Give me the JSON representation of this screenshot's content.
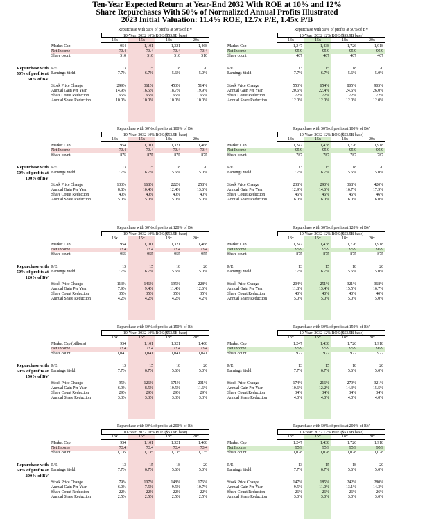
{
  "title": {
    "line1": "Ten-Year Expected Return at Year-End 2032 With ROE at 10% and 12%",
    "line2": "Share Repurchases With 50% of Normalized Annual Profits Illustrated",
    "line3": "2023 Initial Valuation: 11.4% ROE, 12.7x P/E, 1.45x P/B"
  },
  "colors": {
    "left_highlight": "#f6d9d9",
    "right_highlight": "#d6eccb"
  },
  "columns": [
    "13x",
    "15x",
    "18x",
    "20x"
  ],
  "left_roe_header": "10-Year: 2032 10% ROE ($53.9B base)",
  "right_roe_header": "10-Year: 2032 12% ROE ($53.9B base)",
  "sections": [
    {
      "side_label": [
        "Repurchase with",
        "50% of profits at",
        "50% of BV"
      ],
      "panels": [
        {
          "header": "Repurchase with 50% of profits at 50% of BV",
          "roe_header": "10-Year: 2032 10% ROE ($53.9B base)",
          "market_cap_label": "Market Cap",
          "market_cap": [
            "954",
            "1,101",
            "1,321",
            "1,468"
          ],
          "net_income": [
            "73.4",
            "73.4",
            "73.4",
            "73.4"
          ],
          "share_count": [
            "510",
            "510",
            "510",
            "510"
          ],
          "pe": [
            "13",
            "15",
            "18",
            "20"
          ],
          "ey": [
            "7.7%",
            "6.7%",
            "5.6%",
            "5.0%"
          ],
          "spc": [
            "299%",
            "361%",
            "453%",
            "514%"
          ],
          "agy": [
            "14.9%",
            "16.5%",
            "18.7%",
            "19.9%"
          ],
          "scr": [
            "65%",
            "65%",
            "65%",
            "65%"
          ],
          "asr": [
            "10.0%",
            "10.0%",
            "10.0%",
            "10.0%"
          ]
        },
        {
          "header": "Repurchase with 50% of profits at 50% of BV",
          "roe_header": "10-Year: 2032 12% ROE ($53.9B base)",
          "market_cap_label": "Market Cap",
          "market_cap": [
            "1,247",
            "1,438",
            "1,726",
            "1,918"
          ],
          "net_income": [
            "95.9",
            "95.9",
            "95.9",
            "95.9"
          ],
          "share_count": [
            "407",
            "407",
            "407",
            "407"
          ],
          "pe": [
            "13",
            "15",
            "18",
            "20"
          ],
          "ey": [
            "7.7%",
            "6.7%",
            "5.6%",
            "5.0%"
          ],
          "spc": [
            "553%",
            "654%",
            "805%",
            "905%"
          ],
          "agy": [
            "20.6%",
            "22.4%",
            "24.6%",
            "26.0%"
          ],
          "scr": [
            "72%",
            "72%",
            "72%",
            "72%"
          ],
          "asr": [
            "12.0%",
            "12.0%",
            "12.0%",
            "12.0%"
          ]
        }
      ]
    },
    {
      "side_label": [
        "Repurchase with",
        "50% of profits at",
        "100% of BV"
      ],
      "panels": [
        {
          "header": "Repurchase with 50% of profits at 100% of BV",
          "roe_header": "10-Year: 2032 10% ROE ($53.9B base)",
          "market_cap_label": "Market Cap",
          "market_cap": [
            "954",
            "1,101",
            "1,321",
            "1,468"
          ],
          "net_income": [
            "73.4",
            "73.4",
            "73.4",
            "73.4"
          ],
          "share_count": [
            "875",
            "875",
            "875",
            "875"
          ],
          "pe": [
            "13",
            "15",
            "18",
            "20"
          ],
          "ey": [
            "7.7%",
            "6.7%",
            "5.6%",
            "5.0%"
          ],
          "spc": [
            "133%",
            "168%",
            "222%",
            "258%"
          ],
          "agy": [
            "8.8%",
            "10.4%",
            "12.4%",
            "13.6%"
          ],
          "scr": [
            "40%",
            "40%",
            "40%",
            "40%"
          ],
          "asr": [
            "5.0%",
            "5.0%",
            "5.0%",
            "5.0%"
          ]
        },
        {
          "header": "Repurchase with 50% of profits at 100% of BV",
          "roe_header": "10-Year: 2032 12% ROE ($53.9B base)",
          "market_cap_label": "Market Cap",
          "market_cap": [
            "1,247",
            "1,438",
            "1,726",
            "1,918"
          ],
          "net_income": [
            "95.9",
            "95.9",
            "95.9",
            "95.9"
          ],
          "share_count": [
            "787",
            "787",
            "787",
            "787"
          ],
          "pe": [
            "13",
            "15",
            "18",
            "20"
          ],
          "ey": [
            "7.7%",
            "6.7%",
            "5.6%",
            "5.0%"
          ],
          "spc": [
            "238%",
            "290%",
            "368%",
            "420%"
          ],
          "agy": [
            "12.9%",
            "14.6%",
            "16.7%",
            "17.9%"
          ],
          "scr": [
            "46%",
            "46%",
            "46%",
            "46%"
          ],
          "asr": [
            "6.0%",
            "6.0%",
            "6.0%",
            "6.0%"
          ]
        }
      ]
    },
    {
      "side_label": [
        "Repurchase with",
        "50% of profits at",
        "120% of BV"
      ],
      "panels": [
        {
          "header": "Repurchase with 50% of profits at 120% of BV",
          "roe_header": "10-Year: 2032 10% ROE ($53.9B base)",
          "market_cap_label": "Market Cap",
          "market_cap": [
            "954",
            "1,101",
            "1,321",
            "1,468"
          ],
          "net_income": [
            "73.4",
            "73.4",
            "73.4",
            "73.4"
          ],
          "share_count": [
            "955",
            "955",
            "955",
            "955"
          ],
          "pe": [
            "13",
            "15",
            "18",
            "20"
          ],
          "ey": [
            "7.7%",
            "6.7%",
            "5.6%",
            "5.0%"
          ],
          "spc": [
            "113%",
            "146%",
            "195%",
            "228%"
          ],
          "agy": [
            "7.9%",
            "9.4%",
            "11.4%",
            "12.6%"
          ],
          "scr": [
            "35%",
            "35%",
            "35%",
            "35%"
          ],
          "asr": [
            "4.2%",
            "4.2%",
            "4.2%",
            "4.2%"
          ]
        },
        {
          "header": "Repurchase with 50% of profits at 120% of BV",
          "roe_header": "10-Year: 2032 12% ROE ($53.9B base)",
          "market_cap_label": "Market Cap",
          "market_cap": [
            "1,247",
            "1,438",
            "1,726",
            "1,918"
          ],
          "net_income": [
            "95.9",
            "95.9",
            "95.9",
            "95.9"
          ],
          "share_count": [
            "875",
            "875",
            "875",
            "875"
          ],
          "pe": [
            "13",
            "15",
            "18",
            "20"
          ],
          "ey": [
            "7.7%",
            "6.7%",
            "5.6%",
            "5.0%"
          ],
          "spc": [
            "204%",
            "251%",
            "321%",
            "368%"
          ],
          "agy": [
            "11.8%",
            "13.4%",
            "15.5%",
            "16.7%"
          ],
          "scr": [
            "40%",
            "40%",
            "40%",
            "40%"
          ],
          "asr": [
            "5.0%",
            "5.0%",
            "5.0%",
            "5.0%"
          ]
        }
      ]
    },
    {
      "side_label": [
        "Repurchase with",
        "50% of profits at",
        "150% of BV"
      ],
      "panels": [
        {
          "header": "Repurchase with 50% of profits at 150% of BV",
          "roe_header": "10-Year: 2032 10% ROE ($53.9B base)",
          "market_cap_label": "Market Cap (billions)",
          "market_cap": [
            "954",
            "1,101",
            "1,321",
            "1,468"
          ],
          "net_income": [
            "73.4",
            "73.4",
            "73.4",
            "73.4"
          ],
          "share_count": [
            "1,041",
            "1,041",
            "1,041",
            "1,041"
          ],
          "pe": [
            "13",
            "15",
            "18",
            "20"
          ],
          "ey": [
            "7.7%",
            "6.7%",
            "5.6%",
            "5.0%"
          ],
          "spc": [
            "95%",
            "126%",
            "171%",
            "201%"
          ],
          "agy": [
            "6.9%",
            "8.5%",
            "10.5%",
            "11.6%"
          ],
          "scr": [
            "29%",
            "29%",
            "29%",
            "29%"
          ],
          "asr": [
            "3.3%",
            "3.3%",
            "3.3%",
            "3.3%"
          ]
        },
        {
          "header": "Repurchase with 50% of profits at 150% of BV",
          "roe_header": "10-Year: 2032 12% ROE ($53.9B base)",
          "market_cap_label": "Market Cap",
          "market_cap": [
            "1,247",
            "1,438",
            "1,726",
            "1,918"
          ],
          "net_income": [
            "95.9",
            "95.9",
            "95.9",
            "95.9"
          ],
          "share_count": [
            "972",
            "972",
            "972",
            "972"
          ],
          "pe": [
            "13",
            "15",
            "18",
            "20"
          ],
          "ey": [
            "7.7%",
            "6.7%",
            "5.6%",
            "5.0%"
          ],
          "spc": [
            "174%",
            "216%",
            "279%",
            "321%"
          ],
          "agy": [
            "10.6%",
            "12.2%",
            "14.3%",
            "15.5%"
          ],
          "scr": [
            "34%",
            "34%",
            "34%",
            "34%"
          ],
          "asr": [
            "4.0%",
            "4.0%",
            "4.0%",
            "4.0%"
          ]
        }
      ]
    },
    {
      "side_label": [
        "Repurchase with",
        "50% of profits at",
        "200% of BV"
      ],
      "panels": [
        {
          "header": "Repurchase with 50% of profits at 200% of BV",
          "roe_header": "10-Year: 2032 10% ROE ($53.9B base)",
          "market_cap_label": "Market Cap",
          "market_cap": [
            "954",
            "1,101",
            "1,321",
            "1,468"
          ],
          "net_income": [
            "73.4",
            "73.4",
            "73.4",
            "73.4"
          ],
          "share_count": [
            "1,135",
            "1,135",
            "1,135",
            "1,135"
          ],
          "pe": [
            "13",
            "15",
            "18",
            "20"
          ],
          "ey": [
            "7.7%",
            "6.7%",
            "5.6%",
            "5.0%"
          ],
          "spc": [
            "79%",
            "107%",
            "148%",
            "176%"
          ],
          "agy": [
            "6.0%",
            "7.5%",
            "9.5%",
            "10.7%"
          ],
          "scr": [
            "22%",
            "22%",
            "22%",
            "22%"
          ],
          "asr": [
            "2.5%",
            "2.5%",
            "2.5%",
            "2.5%"
          ]
        },
        {
          "header": "Repurchase with 50% of profits at 200% of BV",
          "roe_header": "10-Year: 2032 12% ROE ($53.9B base)",
          "market_cap_label": "Market Cap",
          "market_cap": [
            "1,247",
            "1,438",
            "1,726",
            "1,918"
          ],
          "net_income": [
            "95.9",
            "95.9",
            "95.9",
            "95.9"
          ],
          "share_count": [
            "1,078",
            "1,078",
            "1,078",
            "1,078"
          ],
          "pe": [
            "13",
            "15",
            "18",
            "20"
          ],
          "ey": [
            "7.7%",
            "6.7%",
            "5.6%",
            "5.0%"
          ],
          "spc": [
            "147%",
            "185%",
            "242%",
            "280%"
          ],
          "agy": [
            "9.5%",
            "11.0%",
            "13.1%",
            "14.3%"
          ],
          "scr": [
            "26%",
            "26%",
            "26%",
            "26%"
          ],
          "asr": [
            "3.0%",
            "3.0%",
            "3.0%",
            "3.0%"
          ]
        }
      ]
    }
  ],
  "row_labels": {
    "net_income": "Net Income",
    "share_count": "Share count",
    "pe": "P/E",
    "ey": "Earnings Yield",
    "spc": "Stock Price Change",
    "agy": "Annual Gain Per Year",
    "scr": "Share Count Reduction",
    "asr": "Annual Share Reduction"
  }
}
